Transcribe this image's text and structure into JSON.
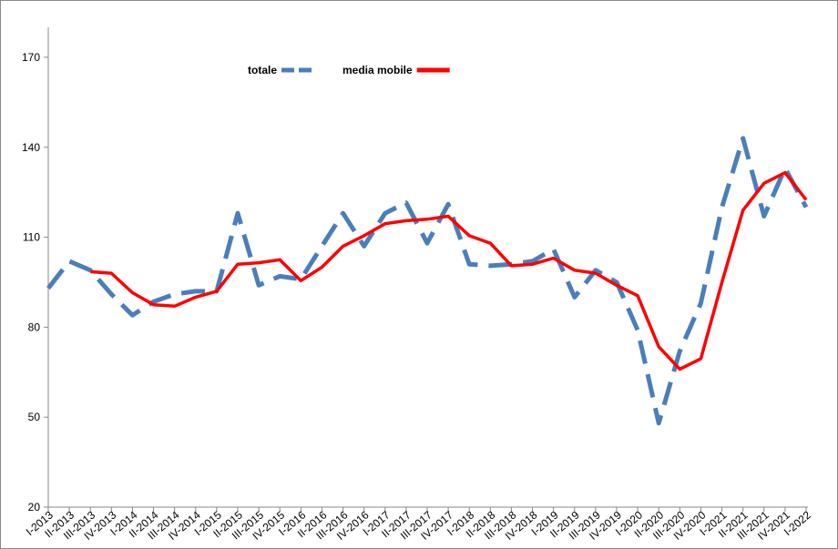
{
  "chart_data": {
    "type": "line",
    "categories": [
      "I-2013",
      "II-2013",
      "III-2013",
      "IV-2013",
      "I-2014",
      "II-2014",
      "III-2014",
      "IV-2014",
      "I-2015",
      "II-2015",
      "III-2015",
      "IV-2015",
      "I-2016",
      "II-2016",
      "III-2016",
      "IV-2016",
      "I-2017",
      "II-2017",
      "III-2017",
      "IV-2017",
      "I-2018",
      "II-2018",
      "III-2018",
      "IV-2018",
      "I-2019",
      "II-2019",
      "III-2019",
      "IV-2019",
      "I-2020",
      "II-2020",
      "III-2020",
      "IV-2020",
      "I-2021",
      "II-2021",
      "III-2021",
      "IV-2021",
      "I-2022"
    ],
    "series": [
      {
        "name": "totale",
        "color": "#4a7ebb",
        "dashed": true,
        "values": [
          93,
          102,
          99,
          91,
          84,
          88.5,
          91,
          92,
          92,
          118,
          94,
          97,
          96,
          107,
          118,
          107,
          118,
          121.5,
          108,
          121,
          101,
          100.5,
          101,
          102,
          106,
          90,
          99,
          95,
          79,
          48,
          72,
          88,
          120,
          143,
          117,
          133,
          120
        ]
      },
      {
        "name": "media mobile",
        "color": "#ff0000",
        "dashed": false,
        "values": [
          null,
          null,
          98.5,
          98,
          91.5,
          87.5,
          87,
          90,
          92,
          101,
          101.5,
          102.5,
          95.5,
          100,
          107,
          110.5,
          114.5,
          115.5,
          116,
          117,
          110.5,
          108,
          100.5,
          101,
          103,
          99,
          98,
          94,
          90.5,
          73.5,
          66,
          69.5,
          95,
          119,
          128,
          131.5,
          122.5
        ]
      }
    ],
    "ylim": [
      20,
      180
    ],
    "yticks": [
      20,
      50,
      80,
      110,
      140,
      170
    ],
    "grid": false
  }
}
